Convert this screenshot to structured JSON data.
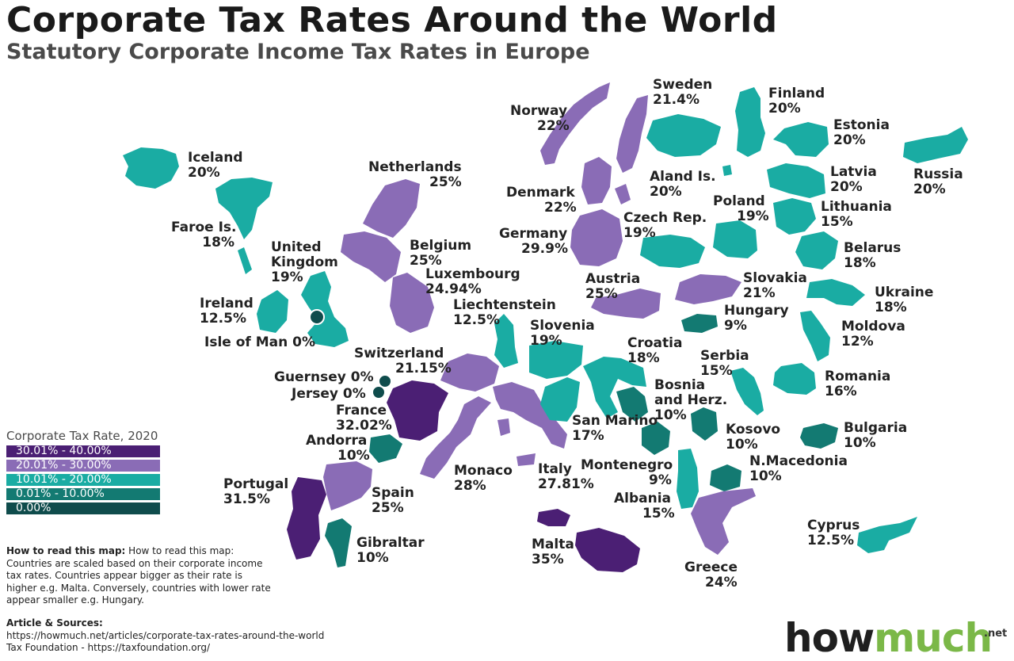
{
  "title": "Corporate Tax Rates Around the World",
  "subtitle": "Statutory Corporate Income Tax Rates in Europe",
  "colors": {
    "band_30_40": "#4b1f74",
    "band_20_30": "#8a6cb6",
    "band_10_20": "#1aaca3",
    "band_0_10": "#137a72",
    "band_0": "#0f4c4c",
    "logo_green": "#7bb848"
  },
  "legend": {
    "title": "Corporate Tax Rate, 2020",
    "items": [
      {
        "label": "30.01% - 40.00%",
        "color": "#4b1f74"
      },
      {
        "label": "20.01% - 30.00%",
        "color": "#8a6cb6"
      },
      {
        "label": "10.01% - 20.00%",
        "color": "#1aaca3"
      },
      {
        "label": "0.01% - 10.00%",
        "color": "#137a72"
      },
      {
        "label": "0.00%",
        "color": "#0f4c4c"
      }
    ]
  },
  "countries": [
    {
      "name": "Iceland",
      "rate": "20%",
      "band": "10.01% - 20.00%"
    },
    {
      "name": "Faroe Is.",
      "rate": "18%",
      "band": "10.01% - 20.00%"
    },
    {
      "name": "United Kingdom",
      "rate": "19%",
      "band": "10.01% - 20.00%"
    },
    {
      "name": "Ireland",
      "rate": "12.5%",
      "band": "10.01% - 20.00%"
    },
    {
      "name": "Isle of Man",
      "rate": "0%",
      "band": "0.00%"
    },
    {
      "name": "Netherlands",
      "rate": "25%",
      "band": "20.01% - 30.00%"
    },
    {
      "name": "Belgium",
      "rate": "25%",
      "band": "20.01% - 30.00%"
    },
    {
      "name": "Luxembourg",
      "rate": "24.94%",
      "band": "20.01% - 30.00%"
    },
    {
      "name": "Liechtenstein",
      "rate": "12.5%",
      "band": "10.01% - 20.00%"
    },
    {
      "name": "Switzerland",
      "rate": "21.15%",
      "band": "20.01% - 30.00%"
    },
    {
      "name": "Guernsey",
      "rate": "0%",
      "band": "0.00%"
    },
    {
      "name": "Jersey",
      "rate": "0%",
      "band": "0.00%"
    },
    {
      "name": "France",
      "rate": "32.02%",
      "band": "30.01% - 40.00%"
    },
    {
      "name": "Andorra",
      "rate": "10%",
      "band": "0.01% - 10.00%"
    },
    {
      "name": "Portugal",
      "rate": "31.5%",
      "band": "30.01% - 40.00%"
    },
    {
      "name": "Spain",
      "rate": "25%",
      "band": "20.01% - 30.00%"
    },
    {
      "name": "Gibraltar",
      "rate": "10%",
      "band": "0.01% - 10.00%"
    },
    {
      "name": "Monaco",
      "rate": "28%",
      "band": "20.01% - 30.00%"
    },
    {
      "name": "Italy",
      "rate": "27.81%",
      "band": "20.01% - 30.00%"
    },
    {
      "name": "San Marino",
      "rate": "17%",
      "band": "10.01% - 20.00%"
    },
    {
      "name": "Malta",
      "rate": "35%",
      "band": "30.01% - 40.00%"
    },
    {
      "name": "Norway",
      "rate": "22%",
      "band": "20.01% - 30.00%"
    },
    {
      "name": "Sweden",
      "rate": "21.4%",
      "band": "20.01% - 30.00%"
    },
    {
      "name": "Finland",
      "rate": "20%",
      "band": "10.01% - 20.00%"
    },
    {
      "name": "Aland Is.",
      "rate": "20%",
      "band": "10.01% - 20.00%"
    },
    {
      "name": "Denmark",
      "rate": "22%",
      "band": "20.01% - 30.00%"
    },
    {
      "name": "Germany",
      "rate": "29.9%",
      "band": "20.01% - 30.00%"
    },
    {
      "name": "Austria",
      "rate": "25%",
      "band": "20.01% - 30.00%"
    },
    {
      "name": "Slovenia",
      "rate": "19%",
      "band": "10.01% - 20.00%"
    },
    {
      "name": "Croatia",
      "rate": "18%",
      "band": "10.01% - 20.00%"
    },
    {
      "name": "Czech Rep.",
      "rate": "19%",
      "band": "10.01% - 20.00%"
    },
    {
      "name": "Poland",
      "rate": "19%",
      "band": "10.01% - 20.00%"
    },
    {
      "name": "Slovakia",
      "rate": "21%",
      "band": "20.01% - 30.00%"
    },
    {
      "name": "Hungary",
      "rate": "9%",
      "band": "0.01% - 10.00%"
    },
    {
      "name": "Serbia",
      "rate": "15%",
      "band": "10.01% - 20.00%"
    },
    {
      "name": "Bosnia and Herz.",
      "rate": "10%",
      "band": "0.01% - 10.00%"
    },
    {
      "name": "Kosovo",
      "rate": "10%",
      "band": "0.01% - 10.00%"
    },
    {
      "name": "Montenegro",
      "rate": "9%",
      "band": "0.01% - 10.00%"
    },
    {
      "name": "Albania",
      "rate": "15%",
      "band": "10.01% - 20.00%"
    },
    {
      "name": "N.Macedonia",
      "rate": "10%",
      "band": "0.01% - 10.00%"
    },
    {
      "name": "Greece",
      "rate": "24%",
      "band": "20.01% - 30.00%"
    },
    {
      "name": "Bulgaria",
      "rate": "10%",
      "band": "0.01% - 10.00%"
    },
    {
      "name": "Romania",
      "rate": "16%",
      "band": "10.01% - 20.00%"
    },
    {
      "name": "Moldova",
      "rate": "12%",
      "band": "10.01% - 20.00%"
    },
    {
      "name": "Ukraine",
      "rate": "18%",
      "band": "10.01% - 20.00%"
    },
    {
      "name": "Belarus",
      "rate": "18%",
      "band": "10.01% - 20.00%"
    },
    {
      "name": "Lithuania",
      "rate": "15%",
      "band": "10.01% - 20.00%"
    },
    {
      "name": "Latvia",
      "rate": "20%",
      "band": "10.01% - 20.00%"
    },
    {
      "name": "Estonia",
      "rate": "20%",
      "band": "10.01% - 20.00%"
    },
    {
      "name": "Russia",
      "rate": "20%",
      "band": "10.01% - 20.00%"
    },
    {
      "name": "Cyprus",
      "rate": "12.5%",
      "band": "10.01% - 20.00%"
    }
  ],
  "howto": {
    "heading": "How to read this map:",
    "text": "How to read this map: Countries are scaled based on their corporate income tax rates. Countries appear bigger as their rate is higher e.g. Malta. Conversely, countries with lower rate appear smaller e.g. Hungary."
  },
  "sources": {
    "title": "Article & Sources:",
    "line1": "https://howmuch.net/articles/corporate-tax-rates-around-the-world",
    "line2": "Tax Foundation - https://taxfoundation.org/"
  },
  "logo": {
    "part1": "how",
    "part2": "much",
    "suffix": ".net"
  }
}
